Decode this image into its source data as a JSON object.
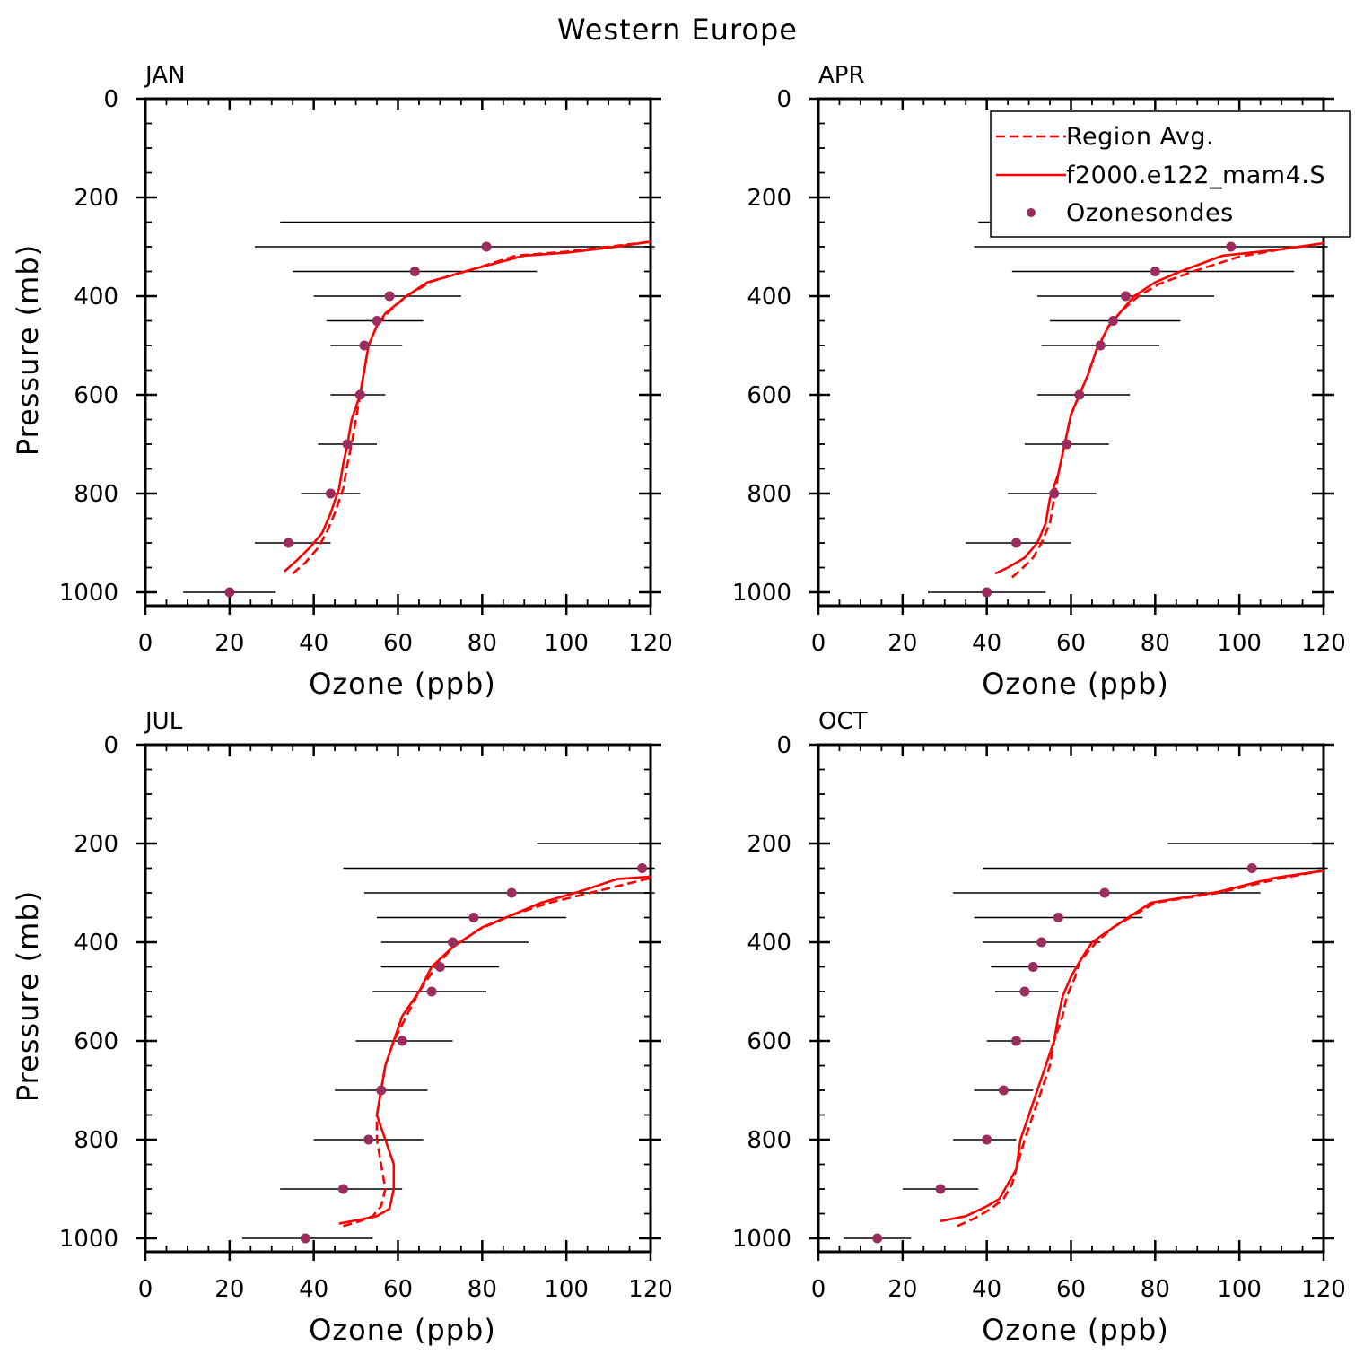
{
  "title": "Western Europe",
  "legend": {
    "placement": "top-right of APR panel",
    "entries": [
      {
        "label": "Region Avg.",
        "style": "dashed",
        "color": "#ff0000"
      },
      {
        "label": "f2000.e122_mam4.S",
        "style": "solid",
        "color": "#ff0000"
      },
      {
        "label": "Ozonesondes",
        "style": "marker",
        "color": "#9b2c5e"
      }
    ]
  },
  "colors": {
    "model": "#ff0000",
    "obs": "#9b2c5e",
    "axis": "#000000",
    "errorbar": "#000000"
  },
  "chart_data": [
    {
      "type": "line",
      "panel": "JAN",
      "xlabel": "Ozone (ppb)",
      "ylabel": "Pressure (mb)",
      "xlim": [
        0,
        120
      ],
      "ylim": [
        1000,
        0
      ],
      "xticks": [
        "0",
        "20",
        "40",
        "60",
        "80",
        "100",
        "120"
      ],
      "yticks": [
        "0",
        "200",
        "400",
        "600",
        "800",
        "1000"
      ],
      "series": [
        {
          "name": "Region Avg.",
          "style": "dashed",
          "points": [
            [
              35,
              962
            ],
            [
              38,
              940
            ],
            [
              41,
              910
            ],
            [
              43,
              880
            ],
            [
              45,
              840
            ],
            [
              47,
              790
            ],
            [
              48,
              740
            ],
            [
              49,
              700
            ],
            [
              50,
              650
            ],
            [
              51,
              600
            ],
            [
              52,
              550
            ],
            [
              53,
              500
            ],
            [
              55,
              460
            ],
            [
              58,
              430
            ],
            [
              62,
              400
            ],
            [
              68,
              370
            ],
            [
              78,
              345
            ],
            [
              88,
              318
            ],
            [
              100,
              310
            ],
            [
              110,
              300
            ],
            [
              120,
              290
            ]
          ]
        },
        {
          "name": "f2000.e122_mam4.S",
          "style": "solid",
          "points": [
            [
              33,
              958
            ],
            [
              36,
              935
            ],
            [
              39,
              910
            ],
            [
              42,
              880
            ],
            [
              44,
              840
            ],
            [
              46,
              790
            ],
            [
              47,
              740
            ],
            [
              48,
              700
            ],
            [
              49,
              650
            ],
            [
              51,
              600
            ],
            [
              52,
              550
            ],
            [
              53,
              500
            ],
            [
              55,
              460
            ],
            [
              57,
              435
            ],
            [
              62,
              400
            ],
            [
              67,
              372
            ],
            [
              78,
              345
            ],
            [
              90,
              318
            ],
            [
              100,
              312
            ],
            [
              110,
              302
            ],
            [
              120,
              290
            ]
          ]
        }
      ],
      "ozonesondes": [
        {
          "p": 1000,
          "mean": 20,
          "lo": 9,
          "hi": 31
        },
        {
          "p": 900,
          "mean": 34,
          "lo": 26,
          "hi": 44
        },
        {
          "p": 800,
          "mean": 44,
          "lo": 37,
          "hi": 51
        },
        {
          "p": 700,
          "mean": 48,
          "lo": 41,
          "hi": 55
        },
        {
          "p": 600,
          "mean": 51,
          "lo": 44,
          "hi": 57
        },
        {
          "p": 500,
          "mean": 52,
          "lo": 44,
          "hi": 61
        },
        {
          "p": 450,
          "mean": 55,
          "lo": 43,
          "hi": 66
        },
        {
          "p": 400,
          "mean": 58,
          "lo": 40,
          "hi": 75
        },
        {
          "p": 350,
          "mean": 64,
          "lo": 35,
          "hi": 93
        },
        {
          "p": 300,
          "mean": 81,
          "lo": 26,
          "hi": 121
        },
        {
          "p": 250,
          "mean": null,
          "lo": 32,
          "hi": 121
        }
      ]
    },
    {
      "type": "line",
      "panel": "APR",
      "xlabel": "Ozone (ppb)",
      "ylabel": "",
      "xlim": [
        0,
        120
      ],
      "ylim": [
        1000,
        0
      ],
      "xticks": [
        "0",
        "20",
        "40",
        "60",
        "80",
        "100",
        "120"
      ],
      "yticks": [
        "0",
        "200",
        "400",
        "600",
        "800",
        "1000"
      ],
      "series": [
        {
          "name": "Region Avg.",
          "style": "dashed",
          "points": [
            [
              46,
              970
            ],
            [
              48,
              955
            ],
            [
              51,
              930
            ],
            [
              53,
              900
            ],
            [
              55,
              860
            ],
            [
              56,
              810
            ],
            [
              57,
              760
            ],
            [
              58,
              720
            ],
            [
              59,
              680
            ],
            [
              60,
              640
            ],
            [
              62,
              600
            ],
            [
              64,
              560
            ],
            [
              66,
              510
            ],
            [
              69,
              460
            ],
            [
              72,
              430
            ],
            [
              76,
              400
            ],
            [
              81,
              375
            ],
            [
              89,
              350
            ],
            [
              100,
              320
            ],
            [
              110,
              305
            ],
            [
              120,
              293
            ]
          ]
        },
        {
          "name": "f2000.e122_mam4.S",
          "style": "solid",
          "points": [
            [
              42,
              962
            ],
            [
              45,
              950
            ],
            [
              49,
              930
            ],
            [
              52,
              900
            ],
            [
              54,
              860
            ],
            [
              55,
              810
            ],
            [
              57,
              760
            ],
            [
              58,
              720
            ],
            [
              59,
              680
            ],
            [
              60,
              640
            ],
            [
              62,
              600
            ],
            [
              64,
              560
            ],
            [
              66,
              510
            ],
            [
              69,
              460
            ],
            [
              72,
              430
            ],
            [
              75,
              400
            ],
            [
              80,
              372
            ],
            [
              86,
              350
            ],
            [
              96,
              318
            ],
            [
              110,
              305
            ],
            [
              120,
              293
            ]
          ]
        }
      ],
      "ozonesondes": [
        {
          "p": 1000,
          "mean": 40,
          "lo": 26,
          "hi": 54
        },
        {
          "p": 900,
          "mean": 47,
          "lo": 35,
          "hi": 60
        },
        {
          "p": 800,
          "mean": 56,
          "lo": 45,
          "hi": 66
        },
        {
          "p": 700,
          "mean": 59,
          "lo": 49,
          "hi": 69
        },
        {
          "p": 600,
          "mean": 62,
          "lo": 52,
          "hi": 74
        },
        {
          "p": 500,
          "mean": 67,
          "lo": 53,
          "hi": 81
        },
        {
          "p": 450,
          "mean": 70,
          "lo": 55,
          "hi": 86
        },
        {
          "p": 400,
          "mean": 73,
          "lo": 52,
          "hi": 94
        },
        {
          "p": 350,
          "mean": 80,
          "lo": 46,
          "hi": 113
        },
        {
          "p": 300,
          "mean": 98,
          "lo": 37,
          "hi": 121
        },
        {
          "p": 250,
          "mean": null,
          "lo": 38,
          "hi": 121
        }
      ]
    },
    {
      "type": "line",
      "panel": "JUL",
      "xlabel": "Ozone (ppb)",
      "ylabel": "Pressure (mb)",
      "xlim": [
        0,
        120
      ],
      "ylim": [
        1000,
        0
      ],
      "xticks": [
        "0",
        "20",
        "40",
        "60",
        "80",
        "100",
        "120"
      ],
      "yticks": [
        "0",
        "200",
        "400",
        "600",
        "800",
        "1000"
      ],
      "series": [
        {
          "name": "Region Avg.",
          "style": "dashed",
          "points": [
            [
              47,
              975
            ],
            [
              51,
              965
            ],
            [
              54,
              955
            ],
            [
              56,
              935
            ],
            [
              57,
              900
            ],
            [
              56,
              850
            ],
            [
              55,
              800
            ],
            [
              55,
              750
            ],
            [
              56,
              700
            ],
            [
              57,
              650
            ],
            [
              59,
              600
            ],
            [
              62,
              550
            ],
            [
              65,
              500
            ],
            [
              69,
              450
            ],
            [
              73,
              410
            ],
            [
              79,
              375
            ],
            [
              87,
              345
            ],
            [
              96,
              320
            ],
            [
              108,
              295
            ],
            [
              120,
              270
            ]
          ]
        },
        {
          "name": "f2000.e122_mam4.S",
          "style": "solid",
          "points": [
            [
              46,
              970
            ],
            [
              51,
              962
            ],
            [
              55,
              955
            ],
            [
              58,
              940
            ],
            [
              59,
              900
            ],
            [
              59,
              850
            ],
            [
              57,
              800
            ],
            [
              55,
              750
            ],
            [
              56,
              700
            ],
            [
              57,
              650
            ],
            [
              59,
              600
            ],
            [
              61,
              550
            ],
            [
              65,
              500
            ],
            [
              68,
              450
            ],
            [
              73,
              410
            ],
            [
              80,
              370
            ],
            [
              87,
              345
            ],
            [
              94,
              320
            ],
            [
              104,
              295
            ],
            [
              112,
              272
            ],
            [
              120,
              267
            ]
          ]
        }
      ],
      "ozonesondes": [
        {
          "p": 1000,
          "mean": 38,
          "lo": 23,
          "hi": 54
        },
        {
          "p": 900,
          "mean": 47,
          "lo": 32,
          "hi": 61
        },
        {
          "p": 800,
          "mean": 53,
          "lo": 40,
          "hi": 66
        },
        {
          "p": 700,
          "mean": 56,
          "lo": 45,
          "hi": 67
        },
        {
          "p": 600,
          "mean": 61,
          "lo": 50,
          "hi": 73
        },
        {
          "p": 500,
          "mean": 68,
          "lo": 54,
          "hi": 81
        },
        {
          "p": 450,
          "mean": 70,
          "lo": 56,
          "hi": 84
        },
        {
          "p": 400,
          "mean": 73,
          "lo": 56,
          "hi": 91
        },
        {
          "p": 350,
          "mean": 78,
          "lo": 55,
          "hi": 100
        },
        {
          "p": 300,
          "mean": 87,
          "lo": 52,
          "hi": 121
        },
        {
          "p": 250,
          "mean": 118,
          "lo": 47,
          "hi": 121
        },
        {
          "p": 200,
          "mean": null,
          "lo": 93,
          "hi": 121
        }
      ]
    },
    {
      "type": "line",
      "panel": "OCT",
      "xlabel": "Ozone (ppb)",
      "ylabel": "",
      "xlim": [
        0,
        120
      ],
      "ylim": [
        1000,
        0
      ],
      "xticks": [
        "0",
        "20",
        "40",
        "60",
        "80",
        "100",
        "120"
      ],
      "yticks": [
        "0",
        "200",
        "400",
        "600",
        "800",
        "1000"
      ],
      "series": [
        {
          "name": "Region Avg.",
          "style": "dashed",
          "points": [
            [
              33,
              975
            ],
            [
              37,
              960
            ],
            [
              41,
              940
            ],
            [
              44,
              920
            ],
            [
              46,
              890
            ],
            [
              47,
              860
            ],
            [
              49,
              800
            ],
            [
              51,
              750
            ],
            [
              53,
              700
            ],
            [
              55,
              650
            ],
            [
              56,
              600
            ],
            [
              58,
              550
            ],
            [
              59,
              510
            ],
            [
              61,
              470
            ],
            [
              62,
              440
            ],
            [
              66,
              400
            ],
            [
              70,
              370
            ],
            [
              80,
              320
            ],
            [
              95,
              300
            ],
            [
              110,
              270
            ],
            [
              120,
              255
            ]
          ]
        },
        {
          "name": "f2000.e122_mam4.S",
          "style": "solid",
          "points": [
            [
              29,
              965
            ],
            [
              35,
              955
            ],
            [
              40,
              935
            ],
            [
              43,
              920
            ],
            [
              45,
              890
            ],
            [
              47,
              860
            ],
            [
              48,
              800
            ],
            [
              50,
              750
            ],
            [
              52,
              700
            ],
            [
              54,
              650
            ],
            [
              56,
              600
            ],
            [
              57,
              550
            ],
            [
              58,
              510
            ],
            [
              60,
              470
            ],
            [
              62,
              440
            ],
            [
              65,
              400
            ],
            [
              70,
              370
            ],
            [
              79,
              320
            ],
            [
              95,
              298
            ],
            [
              108,
              270
            ],
            [
              120,
              255
            ]
          ]
        }
      ],
      "ozonesondes": [
        {
          "p": 1000,
          "mean": 14,
          "lo": 6,
          "hi": 22
        },
        {
          "p": 900,
          "mean": 29,
          "lo": 20,
          "hi": 38
        },
        {
          "p": 800,
          "mean": 40,
          "lo": 32,
          "hi": 47
        },
        {
          "p": 700,
          "mean": 44,
          "lo": 37,
          "hi": 51
        },
        {
          "p": 600,
          "mean": 47,
          "lo": 40,
          "hi": 55
        },
        {
          "p": 500,
          "mean": 49,
          "lo": 42,
          "hi": 57
        },
        {
          "p": 450,
          "mean": 51,
          "lo": 41,
          "hi": 61
        },
        {
          "p": 400,
          "mean": 53,
          "lo": 39,
          "hi": 67
        },
        {
          "p": 350,
          "mean": 57,
          "lo": 37,
          "hi": 77
        },
        {
          "p": 300,
          "mean": 68,
          "lo": 32,
          "hi": 105
        },
        {
          "p": 250,
          "mean": 103,
          "lo": 39,
          "hi": 121
        },
        {
          "p": 200,
          "mean": null,
          "lo": 83,
          "hi": 121
        }
      ]
    }
  ]
}
